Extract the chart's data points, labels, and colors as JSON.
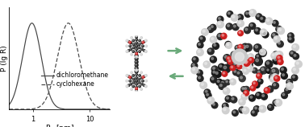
{
  "ylabel": "P (lg R)",
  "xlabel": "R$_h$ [nm]",
  "curve1": {
    "mean_log": -0.02,
    "std_log": 0.165,
    "label": "dichloromethane",
    "linestyle": "solid",
    "color": "#444444"
  },
  "curve2": {
    "mean_log": 0.62,
    "std_log": 0.19,
    "label": "cyclohexane",
    "linestyle": "dashed",
    "color": "#444444"
  },
  "background_color": "#ffffff",
  "legend_fontsize": 5.5,
  "axis_fontsize": 6.5,
  "tick_fontsize": 6,
  "arrow_color": "#6aaa7a",
  "figsize": [
    3.78,
    1.58
  ],
  "dpi": 100,
  "atom_dark": "#252525",
  "atom_light": "#d0d0d0",
  "atom_red": "#cc2020",
  "atom_dark2": "#3a3a3a",
  "atom_highlight": "#606060"
}
